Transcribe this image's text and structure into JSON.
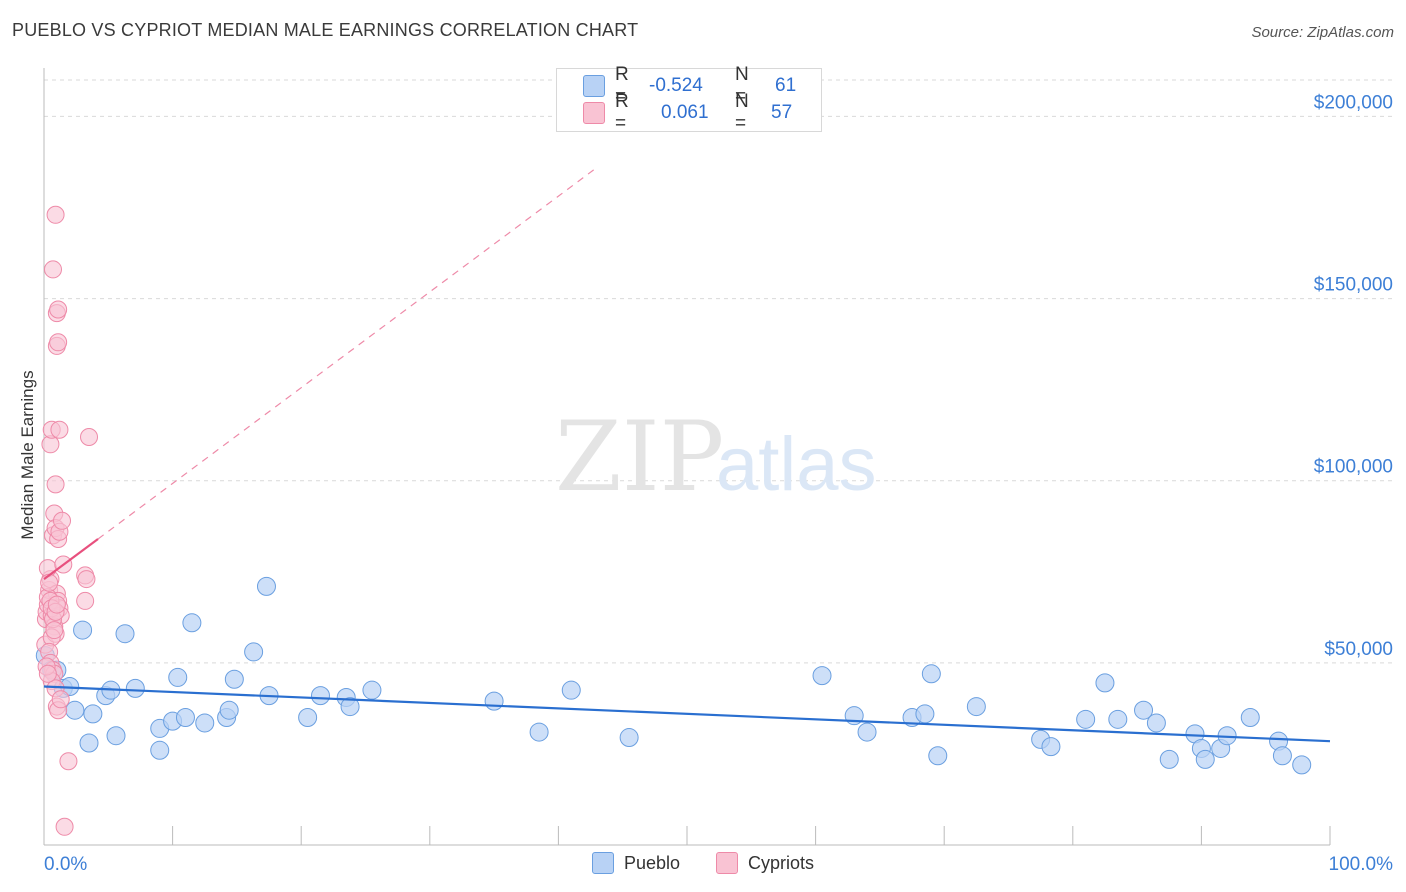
{
  "title": "PUEBLO VS CYPRIOT MEDIAN MALE EARNINGS CORRELATION CHART",
  "source": "Source: ZipAtlas.com",
  "watermark": {
    "zip": "ZIP",
    "atlas": "atlas"
  },
  "colors": {
    "pueblo_fill": "#b8d2f5",
    "pueblo_stroke": "#6a9fe0",
    "pueblo_line": "#2a6fd0",
    "cypriot_fill": "#f9c3d3",
    "cypriot_stroke": "#ee8aa8",
    "cypriot_line": "#e8507e",
    "axis_label": "#3d7fd6",
    "grid": "#d9d9d9"
  },
  "stats": {
    "r_label": "R =",
    "n_label": "N =",
    "pueblo": {
      "r": "-0.524",
      "n": "61"
    },
    "cypriot": {
      "r": "0.061",
      "n": "57"
    }
  },
  "legend": {
    "pueblo": "Pueblo",
    "cypriot": "Cypriots"
  },
  "chart_data": {
    "type": "scatter",
    "title": "PUEBLO VS CYPRIOT MEDIAN MALE EARNINGS CORRELATION CHART",
    "xlabel": "",
    "ylabel": "Median Male Earnings",
    "xlim": [
      0,
      100
    ],
    "ylim": [
      0,
      210000
    ],
    "x_tick_labels": [
      "0.0%",
      "100.0%"
    ],
    "y_ticks": [
      50000,
      100000,
      150000,
      200000
    ],
    "y_tick_labels": [
      "$50,000",
      "$100,000",
      "$150,000",
      "$200,000"
    ],
    "grid": "horizontal dashed",
    "series": [
      {
        "name": "Pueblo",
        "points": [
          [
            0.1,
            52000
          ],
          [
            0.6,
            48000
          ],
          [
            1.5,
            43000
          ],
          [
            2.0,
            43500
          ],
          [
            2.4,
            37000
          ],
          [
            3.0,
            59000
          ],
          [
            3.5,
            28000
          ],
          [
            3.8,
            36000
          ],
          [
            4.8,
            41000
          ],
          [
            5.2,
            42500
          ],
          [
            5.6,
            30000
          ],
          [
            6.3,
            58000
          ],
          [
            7.1,
            43000
          ],
          [
            9.0,
            26000
          ],
          [
            9.0,
            32000
          ],
          [
            10.0,
            34000
          ],
          [
            10.4,
            46000
          ],
          [
            11.0,
            35000
          ],
          [
            11.5,
            61000
          ],
          [
            12.5,
            33500
          ],
          [
            14.2,
            35000
          ],
          [
            14.4,
            37000
          ],
          [
            14.8,
            45500
          ],
          [
            16.3,
            53000
          ],
          [
            17.3,
            71000
          ],
          [
            17.5,
            41000
          ],
          [
            20.5,
            35000
          ],
          [
            21.5,
            41000
          ],
          [
            23.5,
            40500
          ],
          [
            23.8,
            38000
          ],
          [
            25.5,
            42500
          ],
          [
            35.0,
            39500
          ],
          [
            38.5,
            31000
          ],
          [
            41.0,
            42500
          ],
          [
            45.5,
            29500
          ],
          [
            60.5,
            46500
          ],
          [
            63.0,
            35500
          ],
          [
            64.0,
            31000
          ],
          [
            67.5,
            35000
          ],
          [
            68.5,
            36000
          ],
          [
            69.0,
            47000
          ],
          [
            69.5,
            24500
          ],
          [
            72.5,
            38000
          ],
          [
            77.5,
            29000
          ],
          [
            78.3,
            27000
          ],
          [
            81.0,
            34500
          ],
          [
            82.5,
            44500
          ],
          [
            83.5,
            34500
          ],
          [
            85.5,
            37000
          ],
          [
            86.5,
            33500
          ],
          [
            87.5,
            23500
          ],
          [
            89.5,
            30500
          ],
          [
            90.0,
            26500
          ],
          [
            90.3,
            23500
          ],
          [
            91.5,
            26500
          ],
          [
            92.0,
            30000
          ],
          [
            93.8,
            35000
          ],
          [
            96.0,
            28500
          ],
          [
            96.3,
            24500
          ],
          [
            97.8,
            22000
          ],
          [
            1.0,
            48000
          ]
        ],
        "trend": {
          "x": [
            0,
            100
          ],
          "y": [
            43500,
            28500
          ]
        }
      },
      {
        "name": "Cypriots",
        "points": [
          [
            0.1,
            55000
          ],
          [
            0.15,
            62000
          ],
          [
            0.2,
            64000
          ],
          [
            0.3,
            66000
          ],
          [
            0.4,
            70000
          ],
          [
            0.5,
            73000
          ],
          [
            0.3,
            76000
          ],
          [
            0.6,
            63000
          ],
          [
            0.7,
            85000
          ],
          [
            0.8,
            91000
          ],
          [
            0.5,
            110000
          ],
          [
            0.6,
            114000
          ],
          [
            0.9,
            99000
          ],
          [
            0.7,
            158000
          ],
          [
            0.9,
            173000
          ],
          [
            1.0,
            146000
          ],
          [
            1.1,
            147000
          ],
          [
            1.0,
            137000
          ],
          [
            1.1,
            138000
          ],
          [
            1.2,
            114000
          ],
          [
            0.9,
            87000
          ],
          [
            1.1,
            84000
          ],
          [
            1.2,
            86000
          ],
          [
            1.4,
            89000
          ],
          [
            1.5,
            77000
          ],
          [
            1.0,
            69000
          ],
          [
            1.1,
            67000
          ],
          [
            1.2,
            65000
          ],
          [
            1.3,
            63000
          ],
          [
            0.8,
            60000
          ],
          [
            0.9,
            58000
          ],
          [
            0.6,
            57000
          ],
          [
            0.4,
            53000
          ],
          [
            0.5,
            50000
          ],
          [
            0.7,
            48000
          ],
          [
            0.8,
            47000
          ],
          [
            0.6,
            45000
          ],
          [
            0.9,
            43000
          ],
          [
            1.0,
            38000
          ],
          [
            1.1,
            37000
          ],
          [
            1.3,
            40000
          ],
          [
            1.9,
            23000
          ],
          [
            1.6,
            5000
          ],
          [
            3.2,
            74000
          ],
          [
            3.3,
            73000
          ],
          [
            3.2,
            67000
          ],
          [
            3.5,
            112000
          ],
          [
            0.3,
            68000
          ],
          [
            0.4,
            72000
          ],
          [
            0.5,
            67000
          ],
          [
            0.6,
            65000
          ],
          [
            0.7,
            62000
          ],
          [
            0.8,
            59000
          ],
          [
            0.9,
            64000
          ],
          [
            1.0,
            66000
          ],
          [
            0.2,
            49000
          ],
          [
            0.3,
            47000
          ]
        ],
        "trend": {
          "x": [
            0,
            4.2
          ],
          "y": [
            73000,
            84000
          ]
        },
        "trend_extension": {
          "x": [
            4.2,
            43
          ],
          "y": [
            84000,
            186000
          ]
        }
      }
    ]
  }
}
